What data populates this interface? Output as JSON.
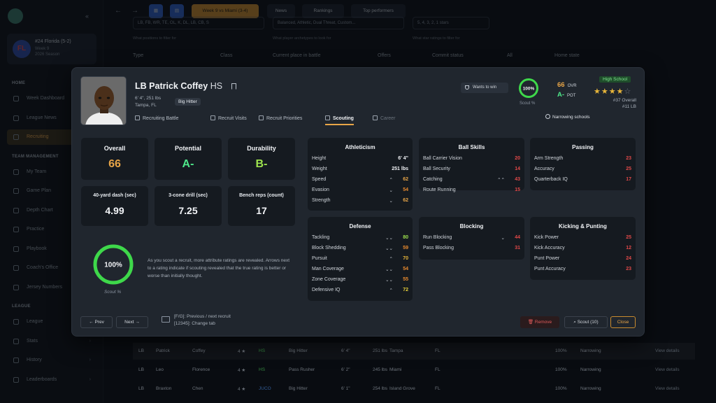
{
  "sidebar": {
    "team": {
      "badge": "FL",
      "name": "#24 Florida (5-2)",
      "week": "Week 9",
      "season": "2026 Season"
    },
    "sections": [
      {
        "heading": "HOME",
        "items": [
          "Week Dashboard",
          "League News",
          "Recruiting"
        ]
      },
      {
        "heading": "TEAM MANAGEMENT",
        "items": [
          "My Team",
          "Game Plan",
          "Depth Chart",
          "Practice",
          "Playbook",
          "Coach's Office",
          "Jersey Numbers"
        ]
      },
      {
        "heading": "LEAGUE",
        "items": [
          "League",
          "Stats",
          "History",
          "Leaderboards"
        ]
      }
    ],
    "active": "Recruiting"
  },
  "topbar": {
    "week_button": "Week 9 vs Miami (3-4)",
    "news": "News",
    "rankings": "Rankings",
    "top_performers": "Top performers"
  },
  "background": {
    "filters": [
      "LB, FB, WR, TE, OL, K, DL, LB, CB, S",
      "Balanced, Athletic, Dual Threat, Custom...",
      "5, 4, 3, 2, 1 stars"
    ],
    "hints": [
      "What positions to filter for",
      "What player archetypes to look for",
      "What star ratings to filter for"
    ],
    "headers": [
      "Type",
      "Class",
      "Current place in battle",
      "Offers",
      "Commit status",
      "All",
      "Home state"
    ],
    "rows": [
      {
        "pos": "LB",
        "first": "Patrick",
        "last": "Coffey",
        "stars": "4 ★",
        "cls": "HS",
        "arch": "Big Hitter",
        "ht": "6' 4\"",
        "wt": "251 lbs",
        "city": "Tampa",
        "st": "FL",
        "pct": "100%",
        "status": "Narrowing",
        "view": "View details"
      },
      {
        "pos": "LB",
        "first": "Leo",
        "last": "Florence",
        "stars": "4 ★",
        "cls": "HS",
        "arch": "Pass Rusher",
        "ht": "6' 2\"",
        "wt": "245 lbs",
        "city": "Miami",
        "st": "FL",
        "pct": "100%",
        "status": "Narrowing",
        "view": "View details"
      },
      {
        "pos": "LB",
        "first": "Braxton",
        "last": "Chen",
        "stars": "4 ★",
        "cls": "JUCO",
        "arch": "Big Hitter",
        "ht": "6' 1\"",
        "wt": "254 lbs",
        "city": "Island Grove",
        "st": "FL",
        "pct": "100%",
        "status": "Narrowing",
        "view": "View details"
      }
    ]
  },
  "modal": {
    "position": "LB",
    "name": "Patrick Coffey",
    "class": "HS",
    "height_weight": "6' 4\", 251 lbs",
    "hometown": "Tampa, FL",
    "archetype": "Big Hitter",
    "tabs": [
      "Recruiting Battle",
      "Recruit Visits",
      "Recruit Priorities",
      "Scouting",
      "Career"
    ],
    "active_tab": "Scouting",
    "wants": "Wants to win",
    "scout_pct": "100%",
    "scout_label": "Scout %",
    "ovr": "66",
    "ovr_label": "OVR",
    "pot": "A-",
    "pot_label": "POT",
    "level": "High School",
    "stars": 4,
    "star_display": "★★★★",
    "star_empty": "☆",
    "rank_overall": "#37 Overall",
    "rank_pos": "#11 LB",
    "narrowing": "Narrowing schools",
    "summary": [
      {
        "label": "Overall",
        "value": "66",
        "color": "#e8a547"
      },
      {
        "label": "Potential",
        "value": "A-",
        "color": "#4ee88a"
      },
      {
        "label": "Durability",
        "value": "B-",
        "color": "#9ee34e"
      }
    ],
    "combine": [
      {
        "label": "40-yard dash (sec)",
        "value": "4.99"
      },
      {
        "label": "3-cone drill (sec)",
        "value": "7.25"
      },
      {
        "label": "Bench reps (count)",
        "value": "17"
      }
    ],
    "explain": "As you scout a recruit, more attribute ratings are revealed. Arrows next to a rating indicate if scouting revealed that the true rating is better or worse than initially thought.",
    "panels": [
      {
        "title": "Athleticism",
        "rows": [
          [
            "Height",
            "",
            "6' 4\"",
            "#f2f4f7"
          ],
          [
            "Weight",
            "",
            "251 lbs",
            "#f2f4f7"
          ],
          [
            "Speed",
            "⌃",
            "62",
            "#e8a547"
          ],
          [
            "Evasion",
            "⌄",
            "54",
            "#e88a2e"
          ],
          [
            "Strength",
            "⌄",
            "62",
            "#e8a547"
          ]
        ]
      },
      {
        "title": "Ball Skills",
        "rows": [
          [
            "Ball Carrier Vision",
            "",
            "20",
            "#e04848"
          ],
          [
            "Ball Security",
            "",
            "14",
            "#e04848"
          ],
          [
            "Catching",
            "⌃⌃",
            "43",
            "#e04848"
          ],
          [
            "Route Running",
            "",
            "15",
            "#e04848"
          ]
        ]
      },
      {
        "title": "Passing",
        "rows": [
          [
            "Arm Strength",
            "",
            "23",
            "#e04848"
          ],
          [
            "Accuracy",
            "",
            "25",
            "#e04848"
          ],
          [
            "Quarterback IQ",
            "",
            "17",
            "#e04848"
          ]
        ]
      },
      {
        "title": "Defense",
        "rows": [
          [
            "Tackling",
            "⌄⌄",
            "80",
            "#9ee34e"
          ],
          [
            "Block Shedding",
            "⌄⌄",
            "59",
            "#e88a2e"
          ],
          [
            "Pursuit",
            "⌃",
            "70",
            "#e8b63a"
          ],
          [
            "Man Coverage",
            "⌄⌄",
            "54",
            "#e88a2e"
          ],
          [
            "Zone Coverage",
            "⌄⌄",
            "55",
            "#e88a2e"
          ],
          [
            "Defensive IQ",
            "⌃",
            "72",
            "#e8d03a"
          ]
        ]
      },
      {
        "title": "Blocking",
        "rows": [
          [
            "Run Blocking",
            "⌄",
            "44",
            "#e04848"
          ],
          [
            "Pass Blocking",
            "",
            "31",
            "#e04848"
          ]
        ]
      },
      {
        "title": "Kicking & Punting",
        "rows": [
          [
            "Kick Power",
            "",
            "25",
            "#e04848"
          ],
          [
            "Kick Accuracy",
            "",
            "12",
            "#e04848"
          ],
          [
            "Punt Power",
            "",
            "24",
            "#e04848"
          ],
          [
            "Punt Accuracy",
            "",
            "23",
            "#e04848"
          ]
        ]
      }
    ],
    "prev": "Prev",
    "next": "Next",
    "shortcut1": "[F/G]: Previous / next recruit",
    "shortcut2": "[12345]: Change tab",
    "remove": "Remove",
    "scout": "Scout (10)",
    "close": "Close"
  }
}
